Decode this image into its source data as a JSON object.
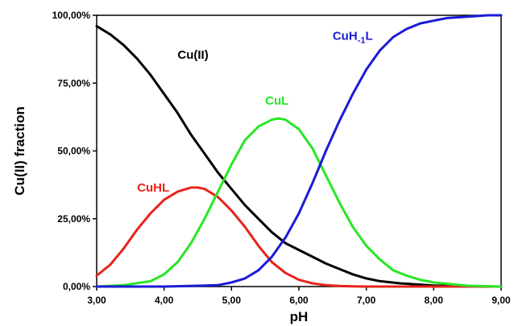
{
  "chart_data": {
    "type": "line",
    "xlabel": "pH",
    "ylabel": "Cu(II) fraction",
    "xlim": [
      3,
      9
    ],
    "ylim": [
      0,
      100
    ],
    "x_ticks": [
      "3,00",
      "4,00",
      "5,00",
      "6,00",
      "7,00",
      "8,00",
      "9,00"
    ],
    "y_ticks": [
      "0,00%",
      "25,00%",
      "50,00%",
      "75,00%",
      "100,00%"
    ],
    "grid": false,
    "series": [
      {
        "name": "Cu(II)",
        "color": "#000000",
        "x": [
          3.0,
          3.2,
          3.4,
          3.6,
          3.8,
          4.0,
          4.2,
          4.4,
          4.6,
          4.8,
          5.0,
          5.2,
          5.4,
          5.6,
          5.8,
          6.0,
          6.2,
          6.4,
          6.6,
          6.8,
          7.0,
          7.2,
          7.5,
          8.0,
          8.5,
          9.0
        ],
        "values": [
          96,
          93,
          89,
          84,
          78,
          71,
          64,
          56,
          49,
          42,
          36,
          30,
          25,
          20,
          16,
          13.5,
          11,
          8.5,
          6.5,
          4.5,
          3,
          2,
          1.2,
          0.4,
          0.1,
          0
        ]
      },
      {
        "name": "CuHL",
        "color": "#e8231c",
        "x": [
          3.0,
          3.2,
          3.4,
          3.6,
          3.8,
          4.0,
          4.2,
          4.4,
          4.5,
          4.6,
          4.8,
          5.0,
          5.2,
          5.4,
          5.6,
          5.8,
          6.0,
          6.2,
          6.4,
          6.6,
          6.8,
          7.0,
          7.5,
          8.0,
          9.0
        ],
        "values": [
          4,
          8,
          14,
          21,
          27,
          32,
          35,
          36.5,
          36.5,
          36,
          33,
          28,
          22,
          15,
          9,
          5,
          2.5,
          1.2,
          0.5,
          0.2,
          0.1,
          0,
          0,
          0,
          0
        ]
      },
      {
        "name": "CuL",
        "color": "#27e627",
        "x": [
          3.0,
          3.4,
          3.8,
          4.0,
          4.2,
          4.4,
          4.6,
          4.8,
          5.0,
          5.2,
          5.4,
          5.6,
          5.7,
          5.8,
          6.0,
          6.2,
          6.4,
          6.6,
          6.8,
          7.0,
          7.2,
          7.4,
          7.6,
          7.8,
          8.0,
          8.5,
          9.0
        ],
        "values": [
          0,
          0.5,
          2,
          4.5,
          9,
          16,
          25,
          35,
          45,
          54,
          59,
          61.5,
          62,
          61.5,
          58,
          51,
          41,
          31,
          22,
          15,
          10,
          6,
          4,
          2.5,
          1.5,
          0.3,
          0
        ]
      },
      {
        "name": "CuH-1L",
        "color": "#1b1bd6",
        "x": [
          3.0,
          4.0,
          4.8,
          5.0,
          5.2,
          5.4,
          5.6,
          5.8,
          6.0,
          6.2,
          6.4,
          6.6,
          6.8,
          7.0,
          7.2,
          7.4,
          7.6,
          7.8,
          8.0,
          8.2,
          8.5,
          8.8,
          9.0
        ],
        "values": [
          0,
          0,
          0.5,
          1.5,
          3,
          6,
          11,
          18,
          27,
          38,
          50,
          61,
          71,
          80,
          87,
          92,
          95,
          97,
          98,
          99,
          99.5,
          100,
          100
        ]
      }
    ],
    "series_labels": [
      {
        "text": "Cu(II)",
        "color": "#000000",
        "x": 4.2,
        "y": 84
      },
      {
        "text": "CuHL",
        "color": "#e8231c",
        "x": 3.6,
        "y": 35
      },
      {
        "text": "CuL",
        "color": "#27e627",
        "x": 5.5,
        "y": 67
      },
      {
        "text": "CuH",
        "sub": "-1",
        "suffix": "L",
        "color": "#1b1bd6",
        "x": 6.5,
        "y": 91
      }
    ]
  }
}
